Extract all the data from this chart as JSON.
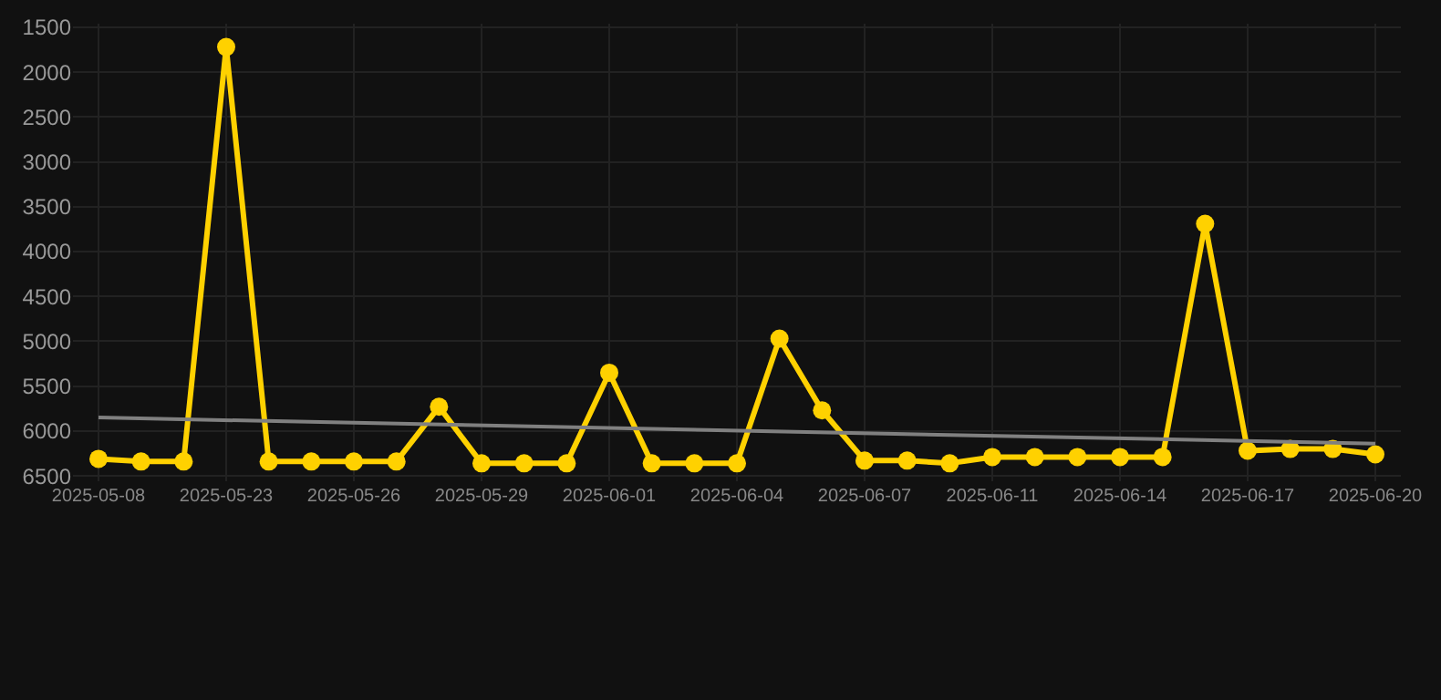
{
  "chart_data": {
    "type": "line",
    "categories": [
      "2025-05-08",
      null,
      null,
      "2025-05-23",
      null,
      null,
      "2025-05-26",
      null,
      null,
      "2025-05-29",
      null,
      null,
      "2025-06-01",
      null,
      null,
      "2025-06-04",
      null,
      null,
      "2025-06-07",
      null,
      null,
      "2025-06-11",
      null,
      null,
      "2025-06-14",
      null,
      null,
      "2025-06-17",
      null,
      null,
      "2025-06-20"
    ],
    "series": [
      {
        "color": "#ffd100",
        "marker": "circle",
        "values": [
          6310,
          6340,
          6340,
          1720,
          6340,
          6340,
          6340,
          6340,
          5730,
          6360,
          6360,
          6360,
          5350,
          6360,
          6360,
          6360,
          4970,
          5770,
          6330,
          6330,
          6360,
          6290,
          6290,
          6290,
          6290,
          6290,
          3690,
          6220,
          6200,
          6200,
          6260
        ]
      },
      {
        "type": "line",
        "color": "#808080",
        "marker": "none",
        "values": [
          5850,
          null,
          null,
          null,
          null,
          null,
          null,
          null,
          null,
          null,
          null,
          null,
          null,
          null,
          null,
          null,
          null,
          null,
          null,
          null,
          null,
          null,
          null,
          null,
          null,
          null,
          null,
          null,
          null,
          null,
          6140
        ]
      }
    ],
    "ylim": [
      6560,
      1460
    ],
    "yticks": [
      1500,
      2000,
      2500,
      3000,
      3500,
      4000,
      4500,
      5000,
      5500,
      6000,
      6500
    ],
    "grid": true
  }
}
